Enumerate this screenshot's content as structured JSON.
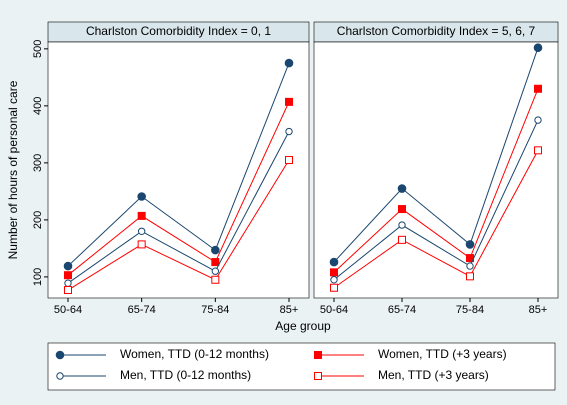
{
  "chart_data": [
    {
      "type": "line",
      "title": "Charlston Comorbidity Index = 0, 1",
      "ylabel": "Number of hours of personal care",
      "xlabel": "Age group",
      "categories": [
        "50-64",
        "65-74",
        "75-84",
        "85+"
      ],
      "ylim": [
        63,
        512
      ],
      "yticks": [
        100,
        200,
        300,
        400,
        500
      ],
      "series": [
        {
          "name": "Women, TTD (0-12 months)",
          "color": "#1a476f",
          "marker": "circle",
          "filled": true,
          "values": [
            119,
            241,
            147,
            475
          ]
        },
        {
          "name": "Women, TTD (+3 years)",
          "color": "#ff0000",
          "marker": "square",
          "filled": true,
          "values": [
            103,
            207,
            126,
            407
          ]
        },
        {
          "name": "Men, TTD (0-12 months)",
          "color": "#1a476f",
          "marker": "circle",
          "filled": false,
          "values": [
            89,
            180,
            110,
            355
          ]
        },
        {
          "name": "Men, TTD (+3 years)",
          "color": "#ff0000",
          "marker": "square",
          "filled": false,
          "values": [
            77,
            157,
            95,
            305
          ]
        }
      ]
    },
    {
      "type": "line",
      "title": "Charlston Comorbidity Index = 5, 6, 7",
      "categories": [
        "50-64",
        "65-74",
        "75-84",
        "85+"
      ],
      "series": [
        {
          "values": [
            126,
            255,
            157,
            502
          ]
        },
        {
          "values": [
            108,
            219,
            133,
            430
          ]
        },
        {
          "values": [
            95,
            191,
            119,
            375
          ]
        },
        {
          "values": [
            81,
            165,
            101,
            322
          ]
        }
      ]
    }
  ]
}
